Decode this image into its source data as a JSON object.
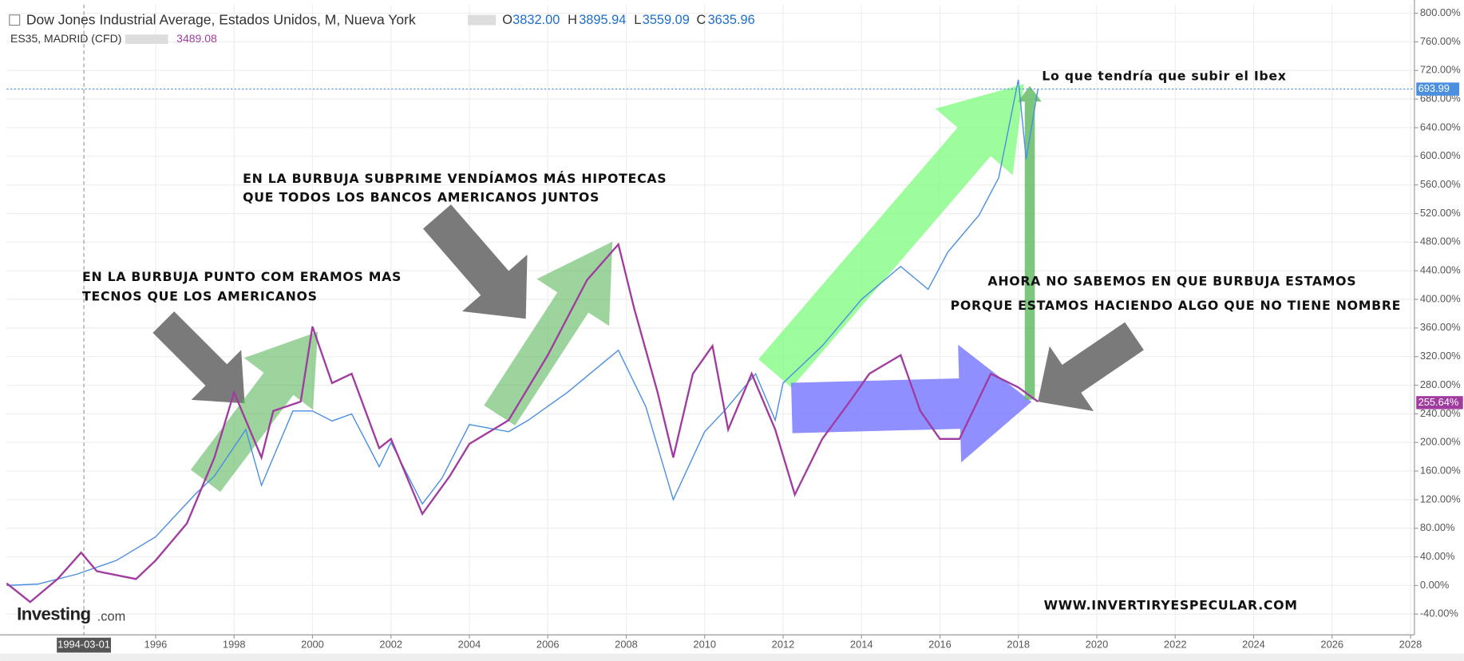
{
  "chart_data": {
    "type": "line",
    "title": "Dow Jones Industrial Average, Estados Unidos, M, Nueva York",
    "ohlc": [
      {
        "label": "O",
        "value": "3832.00"
      },
      {
        "label": "H",
        "value": "3895.94"
      },
      {
        "label": "L",
        "value": "3559.09"
      },
      {
        "label": "C",
        "value": "3635.96"
      }
    ],
    "compare_label": "3489.08",
    "xlim": [
      1992.2,
      2028.1
    ],
    "xticks": [
      1996,
      1998,
      2000,
      2002,
      2004,
      2006,
      2008,
      2010,
      2012,
      2014,
      2016,
      2018,
      2020,
      2022,
      2024,
      2026,
      2028
    ],
    "ylim": [
      -69,
      812
    ],
    "yticks": [
      {
        "value": -40,
        "label": "-40.00%"
      },
      {
        "value": 0,
        "label": "0.00%"
      },
      {
        "value": 40,
        "label": "40.00%"
      },
      {
        "value": 80,
        "label": "80.00%"
      },
      {
        "value": 120,
        "label": "120.00%"
      },
      {
        "value": 160,
        "label": "160.00%"
      },
      {
        "value": 200,
        "label": "200.00%"
      },
      {
        "value": 240,
        "label": "240.00%"
      },
      {
        "value": 280,
        "label": "280.00%"
      },
      {
        "value": 320,
        "label": "320.00%"
      },
      {
        "value": 360,
        "label": "360.00%"
      },
      {
        "value": 400,
        "label": "400.00%"
      },
      {
        "value": 440,
        "label": "440.00%"
      },
      {
        "value": 480,
        "label": "480.00%"
      },
      {
        "value": 520,
        "label": "520.00%"
      },
      {
        "value": 560,
        "label": "560.00%"
      },
      {
        "value": 600,
        "label": "600.00%"
      },
      {
        "value": 640,
        "label": "640.00%"
      },
      {
        "value": 680,
        "label": "680.00%"
      },
      {
        "value": 720,
        "label": "720.00%"
      },
      {
        "value": 760,
        "label": "760.00%"
      },
      {
        "value": 800,
        "label": "800.00%"
      }
    ],
    "grid": true,
    "crosshair": {
      "x": {
        "value": 1994.17,
        "label": "1994-03-01"
      },
      "y": 693.99
    },
    "series": [
      {
        "name": "Dow Jones Industrial Average, Estados Unidos, M, Nueva York",
        "color": "#4a8fe0",
        "x": [
          1992.2,
          1993,
          1994,
          1995,
          1996,
          1997,
          1997.5,
          1998.3,
          1998.7,
          1999.5,
          2000,
          2000.5,
          2001,
          2001.7,
          2002,
          2002.8,
          2003.3,
          2004,
          2005,
          2005.5,
          2006.5,
          2007.8,
          2008.5,
          2009.2,
          2010,
          2010.5,
          2011.3,
          2011.8,
          2012,
          2013,
          2014,
          2015,
          2015.7,
          2016.2,
          2017,
          2017.5,
          2018,
          2018.2,
          2018.5
        ],
        "values": [
          0,
          2,
          16,
          35,
          68,
          127,
          153,
          218,
          140,
          244,
          244,
          230,
          240,
          166,
          200,
          114,
          150,
          225,
          215,
          231,
          270,
          329,
          250,
          120,
          215,
          244,
          296,
          231,
          283,
          335,
          400,
          446,
          414,
          466,
          518,
          570,
          707,
          596,
          694
        ]
      },
      {
        "name": "ES35, MADRID (CFD)",
        "color": "#a03c9f",
        "x": [
          1992.2,
          1992.8,
          1993.5,
          1994.1,
          1994.5,
          1995.5,
          1996,
          1996.8,
          1997.5,
          1998,
          1998.7,
          1999,
          1999.7,
          2000,
          2000.5,
          2001,
          2001.7,
          2002,
          2002.8,
          2003.5,
          2004,
          2005,
          2006,
          2007,
          2007.8,
          2008.2,
          2008.8,
          2009.2,
          2009.7,
          2010.2,
          2010.6,
          2011.2,
          2011.8,
          2012.3,
          2013,
          2013.7,
          2014.2,
          2015,
          2015.5,
          2016,
          2016.5,
          2017.3,
          2018,
          2018.5
        ],
        "values": [
          3,
          -23,
          9,
          46,
          20,
          9,
          35,
          87,
          179,
          270,
          179,
          244,
          257,
          362,
          283,
          296,
          192,
          205,
          100,
          153,
          198,
          231,
          322,
          427,
          477,
          388,
          270,
          179,
          296,
          335,
          218,
          296,
          218,
          127,
          205,
          257,
          296,
          322,
          244,
          205,
          205,
          296,
          277,
          257
        ],
        "last_label": {
          "value": 255.64,
          "label": "255.64%"
        }
      }
    ],
    "annotations": [
      [
        "EN LA BURBUJA PUNTO COM ERAMOS MAS",
        "TECNOS QUE LOS AMERICANOS"
      ],
      [
        "EN LA BURBUJA SUBPRIME VENDÍAMOS MÁS HIPOTECAS",
        "QUE TODOS LOS BANCOS AMERICANOS JUNTOS"
      ],
      [
        "Lo que tendría que subir el Ibex"
      ],
      [
        "AHORA NO SABEMOS EN QUE BURBUJA ESTAMOS"
      ],
      [
        "PORQUE ESTAMOS HACIENDO ALGO QUE NO TIENE NOMBRE"
      ],
      [
        "WWW.INVERTIRYESPECULAR.COM"
      ]
    ],
    "watermark": [
      "Investing",
      ".com"
    ]
  }
}
